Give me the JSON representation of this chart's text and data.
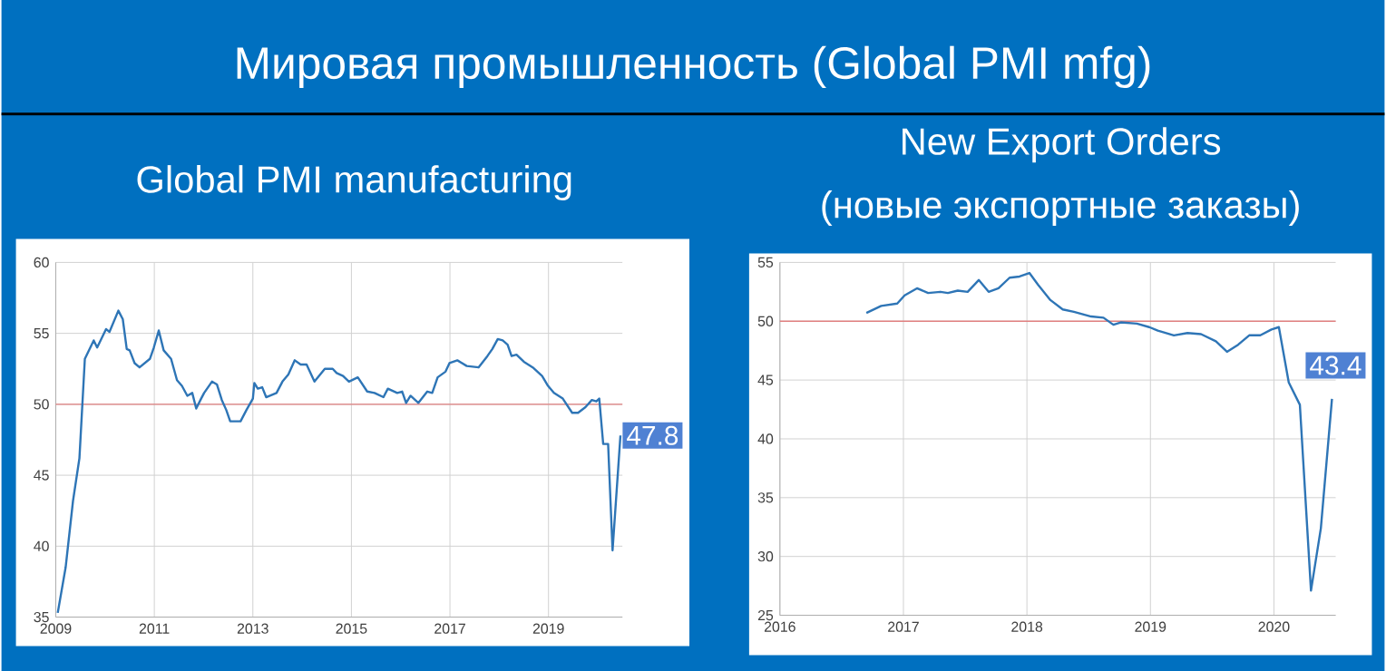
{
  "chart_data": [
    {
      "type": "line",
      "title": "Мировая промышленность (Global PMI mfg)",
      "subtitle": "Global PMI manufacturing",
      "x": [
        2009.04,
        2009.2,
        2009.35,
        2009.48,
        2009.59,
        2009.77,
        2009.84,
        2010.02,
        2010.09,
        2010.27,
        2010.36,
        2010.44,
        2010.5,
        2010.6,
        2010.7,
        2010.91,
        2010.99,
        2011.09,
        2011.19,
        2011.34,
        2011.46,
        2011.56,
        2011.67,
        2011.77,
        2011.85,
        2011.95,
        2012.01,
        2012.17,
        2012.27,
        2012.37,
        2012.46,
        2012.54,
        2012.75,
        2012.87,
        2013.0,
        2013.03,
        2013.1,
        2013.19,
        2013.27,
        2013.48,
        2013.6,
        2013.72,
        2013.85,
        2013.97,
        2014.09,
        2014.25,
        2014.46,
        2014.62,
        2014.7,
        2014.83,
        2014.95,
        2015.13,
        2015.32,
        2015.47,
        2015.65,
        2015.74,
        2015.93,
        2016.03,
        2016.11,
        2016.2,
        2016.36,
        2016.54,
        2016.64,
        2016.75,
        2016.91,
        2016.99,
        2017.15,
        2017.34,
        2017.58,
        2017.76,
        2017.86,
        2017.97,
        2018.07,
        2018.17,
        2018.25,
        2018.35,
        2018.5,
        2018.68,
        2018.87,
        2018.99,
        2019.11,
        2019.29,
        2019.48,
        2019.6,
        2019.75,
        2019.88,
        2019.97,
        2020.03,
        2020.11,
        2020.21,
        2020.3,
        2020.46
      ],
      "series": [
        {
          "color": "#2e75b6",
          "values": [
            35.3,
            38.5,
            43.2,
            46.2,
            53.2,
            54.5,
            54.0,
            55.3,
            55.1,
            56.6,
            56.0,
            53.9,
            53.8,
            52.9,
            52.6,
            53.2,
            54.0,
            55.2,
            53.8,
            53.2,
            51.7,
            51.3,
            50.6,
            50.8,
            49.7,
            50.4,
            50.8,
            51.6,
            51.4,
            50.3,
            49.6,
            48.8,
            48.8,
            49.6,
            50.4,
            51.5,
            51.1,
            51.2,
            50.5,
            50.8,
            51.6,
            52.1,
            53.1,
            52.8,
            52.8,
            51.6,
            52.5,
            52.5,
            52.2,
            52.0,
            51.6,
            51.9,
            50.9,
            50.8,
            50.5,
            51.1,
            50.8,
            50.9,
            50.1,
            50.6,
            50.1,
            50.9,
            50.8,
            51.9,
            52.3,
            52.9,
            53.1,
            52.7,
            52.6,
            53.4,
            53.9,
            54.6,
            54.5,
            54.2,
            53.4,
            53.5,
            53.0,
            52.6,
            52.0,
            51.3,
            50.8,
            50.4,
            49.4,
            49.4,
            49.8,
            50.3,
            50.2,
            50.4,
            47.2,
            47.2,
            39.7,
            47.8
          ]
        }
      ],
      "xlim": [
        2009,
        2020.5
      ],
      "xticks": [
        2009,
        2011,
        2013,
        2015,
        2017,
        2019
      ],
      "ylim": [
        35,
        60
      ],
      "yticks": [
        35,
        40,
        45,
        50,
        55,
        60
      ],
      "grid": true,
      "marker": "none",
      "line_style": "solid",
      "ref_lines": [
        {
          "axis": "y",
          "value": 50,
          "color": "#e08080"
        }
      ],
      "annotations": [
        {
          "text": "47.8",
          "x": 2020.46,
          "y": 47.8
        }
      ]
    },
    {
      "type": "line",
      "title": "New Export Orders",
      "subtitle": "(новые экспортные заказы)",
      "x": [
        2016.7,
        2016.82,
        2016.95,
        2017.01,
        2017.11,
        2017.2,
        2017.3,
        2017.36,
        2017.44,
        2017.52,
        2017.61,
        2017.69,
        2017.77,
        2017.86,
        2017.94,
        2018.02,
        2018.09,
        2018.19,
        2018.29,
        2018.38,
        2018.52,
        2018.62,
        2018.7,
        2018.76,
        2018.89,
        2018.99,
        2019.06,
        2019.19,
        2019.3,
        2019.41,
        2019.53,
        2019.62,
        2019.71,
        2019.8,
        2019.89,
        2019.98,
        2020.04,
        2020.12,
        2020.21,
        2020.3,
        2020.38,
        2020.47
      ],
      "series": [
        {
          "color": "#2e75b6",
          "values": [
            50.7,
            51.3,
            51.5,
            52.2,
            52.8,
            52.4,
            52.5,
            52.4,
            52.6,
            52.5,
            53.5,
            52.5,
            52.8,
            53.7,
            53.8,
            54.1,
            53.1,
            51.8,
            51.0,
            50.8,
            50.4,
            50.3,
            49.7,
            49.9,
            49.8,
            49.5,
            49.2,
            48.8,
            49.0,
            48.9,
            48.3,
            47.4,
            48.0,
            48.8,
            48.8,
            49.3,
            49.5,
            44.8,
            42.9,
            27.1,
            32.4,
            43.4
          ]
        }
      ],
      "xlim": [
        2016,
        2020.5
      ],
      "xticks": [
        2016,
        2017,
        2018,
        2019,
        2020
      ],
      "ylim": [
        25,
        55
      ],
      "yticks": [
        25,
        30,
        35,
        40,
        45,
        50,
        55
      ],
      "grid": true,
      "marker": "none",
      "line_style": "solid",
      "ref_lines": [
        {
          "axis": "y",
          "value": 50,
          "color": "#e08080"
        }
      ],
      "annotations": [
        {
          "text": "43.4",
          "x": 2020.47,
          "y": 43.4
        }
      ]
    }
  ]
}
